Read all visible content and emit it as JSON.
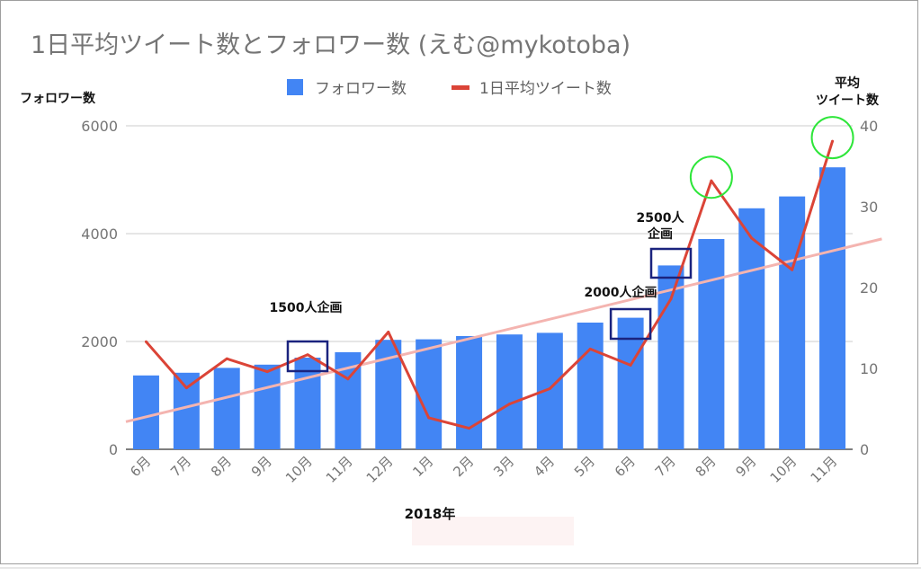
{
  "chart_data": {
    "type": "bar",
    "title": "1日平均ツイート数とフォロワー数 (えむ@mykotoba)",
    "categories": [
      "6月",
      "7月",
      "8月",
      "9月",
      "10月",
      "11月",
      "12月",
      "1月",
      "2月",
      "3月",
      "4月",
      "5月",
      "6月",
      "7月",
      "8月",
      "9月",
      "10月",
      "11月"
    ],
    "xlabel": "2018年",
    "legend_position": "top",
    "grid": true,
    "series": [
      {
        "name": "フォロワー数",
        "type": "bar",
        "axis": "left",
        "color": "#4285f4",
        "values": [
          1370,
          1420,
          1510,
          1570,
          1700,
          1800,
          2030,
          2040,
          2100,
          2130,
          2160,
          2350,
          2440,
          3410,
          3900,
          4470,
          4690,
          5230
        ]
      },
      {
        "name": "1日平均ツイート数",
        "type": "line",
        "axis": "right",
        "color": "#db4437",
        "values": [
          13.3,
          7.6,
          11.2,
          9.6,
          11.7,
          8.7,
          14.5,
          3.9,
          2.6,
          5.6,
          7.5,
          12.4,
          10.4,
          18.6,
          33.2,
          26.1,
          22.2,
          38.1
        ]
      }
    ],
    "trendline": {
      "series": "1日平均ツイート数",
      "color": "#f4b4b0"
    },
    "left_axis": {
      "label": "フォロワー数",
      "ticks": [
        "6000",
        "4000",
        "2000",
        "0"
      ],
      "ylim": [
        0,
        6000
      ]
    },
    "right_axis": {
      "label_line1": "平均",
      "label_line2": "ツイート数",
      "ticks": [
        "40",
        "30",
        "20",
        "10",
        "0"
      ],
      "ylim": [
        0,
        40
      ]
    },
    "annotations": [
      {
        "text": "1500人企画",
        "category_index": 4
      },
      {
        "text": "2000人企画",
        "category_index": 12
      },
      {
        "text_line1": "2500人",
        "text_line2": "企画",
        "category_index": 13
      }
    ],
    "highlights": [
      {
        "shape": "circle",
        "color": "#2ee63a",
        "category_index": 14
      },
      {
        "shape": "circle",
        "color": "#2ee63a",
        "category_index": 17
      }
    ]
  }
}
